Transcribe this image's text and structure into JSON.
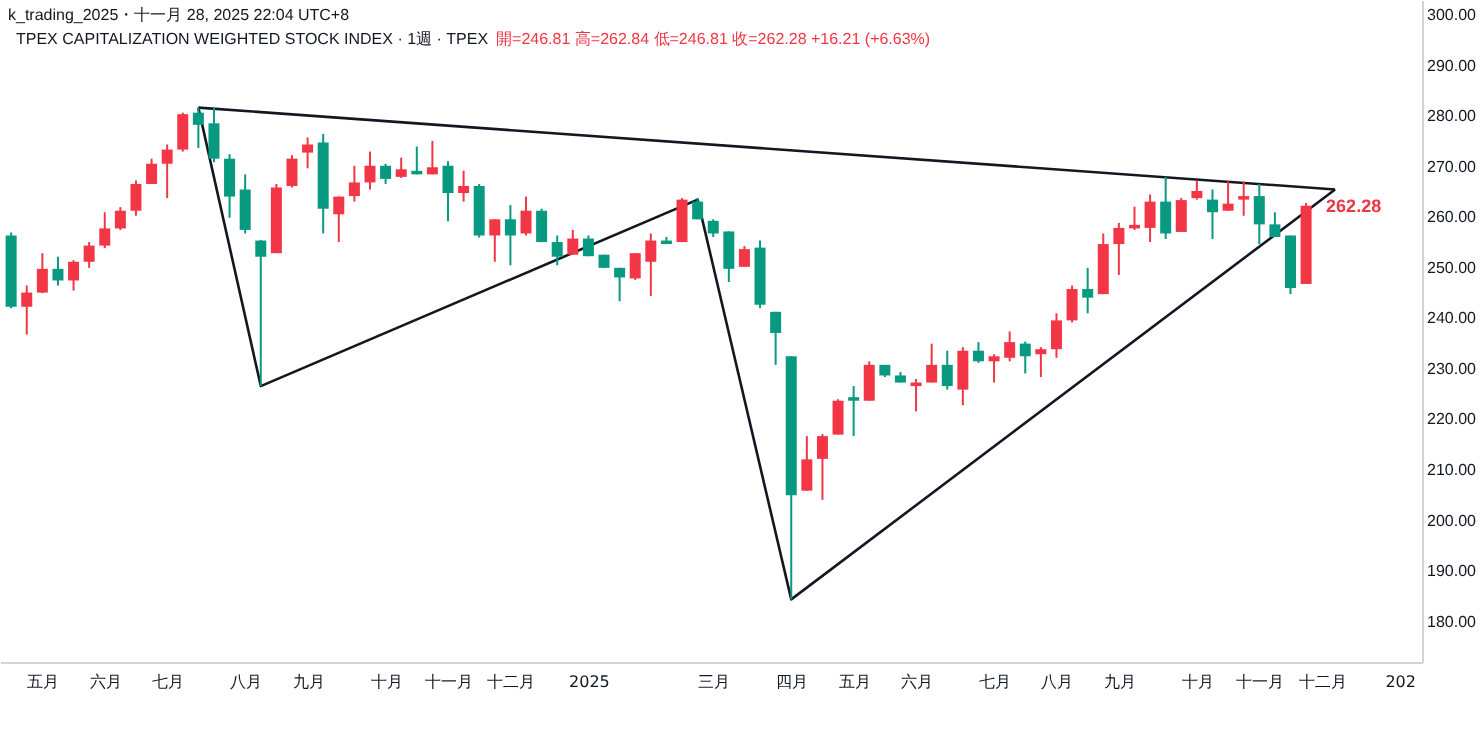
{
  "chart_data": {
    "type": "candlestick",
    "title": "TPEX CAPITALIZATION WEIGHTED STOCK INDEX · 1週 · TPEX",
    "subtitle": "開=246.81 高=262.84 低=246.81 收=262.28 +16.21 (+6.63%)",
    "annotations": [
      "k_trading_2025・十一月 28, 2025 22:04 UTC+8",
      {
        "text": "262.28",
        "x": "2025-11-24",
        "y": 262.28
      }
    ],
    "xlim": [
      "2024-04-17",
      "2026-01-15"
    ],
    "xticks": [
      {
        "value": "2024-05-06",
        "label": "五月"
      },
      {
        "value": "2024-06-03",
        "label": "六月"
      },
      {
        "value": "2024-07-01",
        "label": "七月"
      },
      {
        "value": "2024-08-05",
        "label": "八月"
      },
      {
        "value": "2024-09-02",
        "label": "九月"
      },
      {
        "value": "2024-10-07",
        "label": "十月"
      },
      {
        "value": "2024-11-04",
        "label": "十一月"
      },
      {
        "value": "2024-12-02",
        "label": "十二月"
      },
      {
        "value": "2025-01-06",
        "label": "2025"
      },
      {
        "value": "2025-03-03",
        "label": "三月"
      },
      {
        "value": "2025-04-07",
        "label": "四月"
      },
      {
        "value": "2025-05-05",
        "label": "五月"
      },
      {
        "value": "2025-06-02",
        "label": "六月"
      },
      {
        "value": "2025-07-07",
        "label": "七月"
      },
      {
        "value": "2025-08-04",
        "label": "八月"
      },
      {
        "value": "2025-09-01",
        "label": "九月"
      },
      {
        "value": "2025-10-06",
        "label": "十月"
      },
      {
        "value": "2025-11-03",
        "label": "十一月"
      },
      {
        "value": "2025-12-01",
        "label": "十二月"
      },
      {
        "value": "2026-01-05",
        "label": "202"
      }
    ],
    "ylim": [
      172,
      303
    ],
    "yticks": [
      {
        "value": 180,
        "label": "180.00"
      },
      {
        "value": 190,
        "label": "190.00"
      },
      {
        "value": 200,
        "label": "200.00"
      },
      {
        "value": 210,
        "label": "210.00"
      },
      {
        "value": 220,
        "label": "220.00"
      },
      {
        "value": 230,
        "label": "230.00"
      },
      {
        "value": 240,
        "label": "240.00"
      },
      {
        "value": 250,
        "label": "250.00"
      },
      {
        "value": 260,
        "label": "260.00"
      },
      {
        "value": 270,
        "label": "270.00"
      },
      {
        "value": 280,
        "label": "280.00"
      },
      {
        "value": 290,
        "label": "290.00"
      },
      {
        "value": 300,
        "label": "300.00"
      }
    ],
    "x": [
      "2024-04-22",
      "2024-04-29",
      "2024-05-06",
      "2024-05-13",
      "2024-05-20",
      "2024-05-27",
      "2024-06-03",
      "2024-06-10",
      "2024-06-17",
      "2024-06-24",
      "2024-07-01",
      "2024-07-08",
      "2024-07-15",
      "2024-07-22",
      "2024-07-29",
      "2024-08-05",
      "2024-08-12",
      "2024-08-19",
      "2024-08-26",
      "2024-09-02",
      "2024-09-09",
      "2024-09-16",
      "2024-09-23",
      "2024-09-30",
      "2024-10-07",
      "2024-10-14",
      "2024-10-21",
      "2024-10-28",
      "2024-11-04",
      "2024-11-11",
      "2024-11-18",
      "2024-11-25",
      "2024-12-02",
      "2024-12-09",
      "2024-12-16",
      "2024-12-23",
      "2024-12-30",
      "2025-01-06",
      "2025-01-13",
      "2025-01-20",
      "2025-01-27",
      "2025-02-03",
      "2025-02-10",
      "2025-02-17",
      "2025-02-24",
      "2025-03-03",
      "2025-03-10",
      "2025-03-17",
      "2025-03-24",
      "2025-03-31",
      "2025-04-07",
      "2025-04-14",
      "2025-04-21",
      "2025-04-28",
      "2025-05-05",
      "2025-05-12",
      "2025-05-19",
      "2025-05-26",
      "2025-06-02",
      "2025-06-09",
      "2025-06-16",
      "2025-06-23",
      "2025-06-30",
      "2025-07-07",
      "2025-07-14",
      "2025-07-21",
      "2025-07-28",
      "2025-08-04",
      "2025-08-11",
      "2025-08-18",
      "2025-08-25",
      "2025-09-01",
      "2025-09-08",
      "2025-09-15",
      "2025-09-22",
      "2025-09-29",
      "2025-10-06",
      "2025-10-13",
      "2025-10-20",
      "2025-10-27",
      "2025-11-03",
      "2025-11-10",
      "2025-11-17",
      "2025-11-24"
    ],
    "ohlc": [
      [
        256.4,
        257.0,
        242.0,
        242.3
      ],
      [
        242.3,
        246.5,
        236.8,
        245.1
      ],
      [
        245.1,
        252.9,
        245.0,
        249.8
      ],
      [
        249.8,
        252.2,
        246.5,
        247.5
      ],
      [
        247.5,
        251.5,
        245.5,
        251.2
      ],
      [
        251.2,
        255.1,
        250.0,
        254.4
      ],
      [
        254.4,
        261.0,
        253.9,
        257.8
      ],
      [
        257.8,
        262.0,
        257.5,
        261.3
      ],
      [
        261.3,
        267.3,
        260.3,
        266.6
      ],
      [
        266.6,
        271.6,
        266.6,
        270.6
      ],
      [
        270.6,
        274.4,
        263.8,
        273.4
      ],
      [
        273.4,
        280.7,
        273.0,
        280.4
      ],
      [
        280.7,
        281.7,
        273.7,
        278.3
      ],
      [
        278.6,
        281.7,
        270.9,
        271.6
      ],
      [
        271.6,
        272.5,
        259.9,
        264.1
      ],
      [
        265.5,
        268.5,
        256.8,
        257.5
      ],
      [
        255.4,
        255.5,
        226.6,
        252.2
      ],
      [
        252.9,
        266.6,
        252.9,
        265.9
      ],
      [
        266.2,
        272.3,
        265.9,
        271.6
      ],
      [
        272.8,
        275.8,
        269.7,
        274.4
      ],
      [
        274.8,
        276.5,
        256.8,
        261.7
      ],
      [
        260.6,
        264.1,
        255.1,
        264.1
      ],
      [
        264.2,
        270.2,
        263.1,
        266.9
      ],
      [
        266.9,
        273.0,
        265.5,
        270.2
      ],
      [
        270.2,
        270.6,
        266.6,
        267.6
      ],
      [
        268.0,
        271.8,
        267.8,
        269.5
      ],
      [
        269.2,
        274.0,
        268.5,
        268.5
      ],
      [
        268.5,
        275.1,
        268.5,
        269.9
      ],
      [
        270.2,
        271.1,
        259.2,
        264.8
      ],
      [
        264.8,
        269.2,
        263.1,
        266.2
      ],
      [
        266.2,
        266.6,
        256.0,
        256.4
      ],
      [
        256.4,
        259.6,
        251.2,
        259.6
      ],
      [
        259.6,
        262.4,
        250.5,
        256.4
      ],
      [
        256.8,
        264.1,
        256.4,
        261.3
      ],
      [
        261.3,
        261.7,
        255.1,
        255.1
      ],
      [
        255.1,
        256.4,
        250.5,
        252.2
      ],
      [
        252.6,
        257.5,
        252.6,
        255.8
      ],
      [
        255.8,
        256.4,
        252.3,
        252.3
      ],
      [
        252.6,
        252.6,
        250.0,
        250.0
      ],
      [
        250.0,
        250.0,
        243.4,
        248.1
      ],
      [
        247.9,
        252.9,
        247.6,
        252.9
      ],
      [
        251.2,
        256.8,
        244.4,
        255.4
      ],
      [
        255.4,
        256.1,
        254.7,
        254.7
      ],
      [
        255.1,
        263.8,
        255.1,
        263.5
      ],
      [
        263.1,
        263.8,
        259.6,
        259.6
      ],
      [
        259.3,
        259.6,
        256.1,
        256.8
      ],
      [
        257.2,
        257.2,
        247.2,
        249.8
      ],
      [
        250.2,
        254.3,
        250.2,
        253.7
      ],
      [
        254.0,
        255.4,
        242.0,
        242.7
      ],
      [
        241.3,
        241.3,
        230.8,
        237.1
      ],
      [
        232.5,
        232.5,
        184.4,
        205.0
      ],
      [
        205.9,
        216.7,
        205.9,
        212.1
      ],
      [
        212.2,
        217.1,
        204.1,
        216.7
      ],
      [
        217.0,
        224.0,
        217.0,
        223.7
      ],
      [
        224.4,
        226.6,
        216.7,
        223.7
      ],
      [
        223.7,
        231.5,
        223.7,
        230.8
      ],
      [
        230.8,
        230.8,
        228.4,
        228.7
      ],
      [
        228.7,
        229.4,
        227.3,
        227.3
      ],
      [
        226.6,
        228.0,
        221.6,
        227.3
      ],
      [
        227.3,
        235.0,
        227.3,
        230.8
      ],
      [
        230.8,
        233.6,
        225.9,
        226.6
      ],
      [
        225.9,
        234.3,
        222.8,
        233.6
      ],
      [
        233.6,
        235.3,
        231.2,
        231.5
      ],
      [
        231.5,
        232.9,
        227.3,
        232.5
      ],
      [
        232.2,
        237.4,
        231.5,
        235.3
      ],
      [
        235.0,
        235.4,
        229.1,
        232.5
      ],
      [
        232.9,
        234.3,
        228.4,
        233.9
      ],
      [
        233.9,
        241.0,
        232.2,
        239.6
      ],
      [
        239.6,
        246.5,
        239.2,
        245.8
      ],
      [
        245.8,
        250.0,
        241.0,
        244.1
      ],
      [
        244.8,
        256.8,
        244.8,
        254.7
      ],
      [
        254.7,
        258.9,
        248.6,
        257.9
      ],
      [
        257.8,
        262.1,
        257.5,
        258.5
      ],
      [
        257.9,
        264.5,
        255.1,
        263.1
      ],
      [
        263.1,
        268.0,
        255.7,
        256.8
      ],
      [
        257.1,
        263.8,
        257.1,
        263.4
      ],
      [
        263.8,
        267.3,
        263.5,
        265.2
      ],
      [
        263.5,
        265.5,
        255.7,
        261.0
      ],
      [
        261.3,
        267.1,
        261.3,
        262.7
      ],
      [
        263.5,
        267.1,
        260.3,
        264.2
      ],
      [
        264.2,
        266.6,
        254.7,
        258.6
      ],
      [
        258.6,
        261.0,
        256.1,
        256.1
      ],
      [
        256.4,
        256.4,
        244.8,
        246.0
      ],
      [
        246.81,
        262.84,
        246.81,
        262.28
      ]
    ],
    "colors": [
      "#089981",
      "#f23645",
      "#f23645",
      "#089981",
      "#f23645",
      "#f23645",
      "#f23645",
      "#f23645",
      "#f23645",
      "#f23645",
      "#f23645",
      "#f23645",
      "#089981",
      "#089981",
      "#089981",
      "#089981",
      "#089981",
      "#f23645",
      "#f23645",
      "#f23645",
      "#089981",
      "#f23645",
      "#f23645",
      "#f23645",
      "#089981",
      "#f23645",
      "#089981",
      "#f23645",
      "#089981",
      "#f23645",
      "#089981",
      "#f23645",
      "#089981",
      "#f23645",
      "#089981",
      "#089981",
      "#f23645",
      "#089981",
      "#089981",
      "#089981",
      "#f23645",
      "#f23645",
      "#089981",
      "#f23645",
      "#089981",
      "#089981",
      "#089981",
      "#f23645",
      "#089981",
      "#089981",
      "#089981",
      "#f23645",
      "#f23645",
      "#f23645",
      "#089981",
      "#f23645",
      "#089981",
      "#089981",
      "#f23645",
      "#f23645",
      "#089981",
      "#f23645",
      "#089981",
      "#f23645",
      "#f23645",
      "#089981",
      "#f23645",
      "#f23645",
      "#f23645",
      "#089981",
      "#f23645",
      "#f23645",
      "#f23645",
      "#f23645",
      "#089981",
      "#f23645",
      "#f23645",
      "#089981",
      "#f23645",
      "#f23645",
      "#089981",
      "#089981",
      "#089981",
      "#f23645"
    ],
    "series": [
      {
        "type": "line",
        "color": "#131722",
        "x": [
          "2024-07-15",
          "2025-12-07"
        ],
        "values": [
          281.7,
          265.5
        ]
      },
      {
        "type": "line",
        "color": "#131722",
        "x": [
          "2024-07-15",
          "2024-08-12",
          "2025-02-24",
          "2025-04-07",
          "2025-12-07"
        ],
        "values": [
          281.7,
          226.6,
          263.5,
          184.4,
          265.5
        ]
      }
    ]
  }
}
